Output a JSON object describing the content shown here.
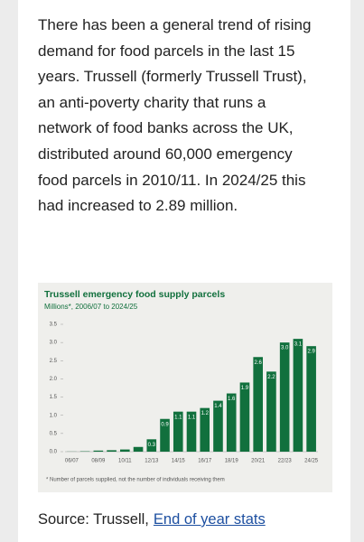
{
  "paragraph": [
    "There has been a general trend of rising",
    "demand for food parcels in the last 15",
    "years. Trussell (formerly Trussell Trust),",
    "an anti-poverty charity that runs a",
    "network of food banks across the UK,",
    "distributed around 60,000 emergency",
    "food parcels in 2010/11. In 2024/25 this",
    "had increased to 2.89 million."
  ],
  "chart_data": {
    "type": "bar",
    "title": "Trussell emergency food supply parcels",
    "subtitle": "Millions*, 2006/07 to 2024/25",
    "categories": [
      "06/07",
      null,
      "08/09",
      null,
      "10/11",
      null,
      "12/13",
      null,
      "14/15",
      null,
      "16/17",
      null,
      "18/19",
      null,
      "20/21",
      null,
      "22/23",
      null,
      "24/25"
    ],
    "values": [
      0.003,
      0.01,
      0.03,
      0.04,
      0.06,
      0.13,
      0.34,
      0.9,
      1.1,
      1.1,
      1.2,
      1.4,
      1.6,
      1.9,
      2.6,
      2.2,
      3.0,
      3.1,
      2.9
    ],
    "value_labels": [
      null,
      null,
      null,
      null,
      null,
      null,
      "0.3",
      "0.9",
      "1.1",
      "1.1",
      "1.2",
      "1.4",
      "1.6",
      "1.9",
      "2.6",
      "2.2",
      "3.0",
      "3.1",
      "2.9"
    ],
    "color": "#11703d",
    "ylim": [
      0,
      3.5
    ],
    "yticks": [
      {
        "value": 0,
        "label": "0.0"
      },
      0.5,
      {
        "value": 1,
        "label": "1.0"
      },
      1.5,
      {
        "value": 2,
        "label": "2.0"
      },
      2.5,
      {
        "value": 3,
        "label": "3.0"
      },
      3.5
    ],
    "footnote": "* Number of parcels supplied, not the number of individuals receiving them"
  },
  "source": {
    "label": "Source: Trussell,",
    "link": "End of year stats"
  }
}
